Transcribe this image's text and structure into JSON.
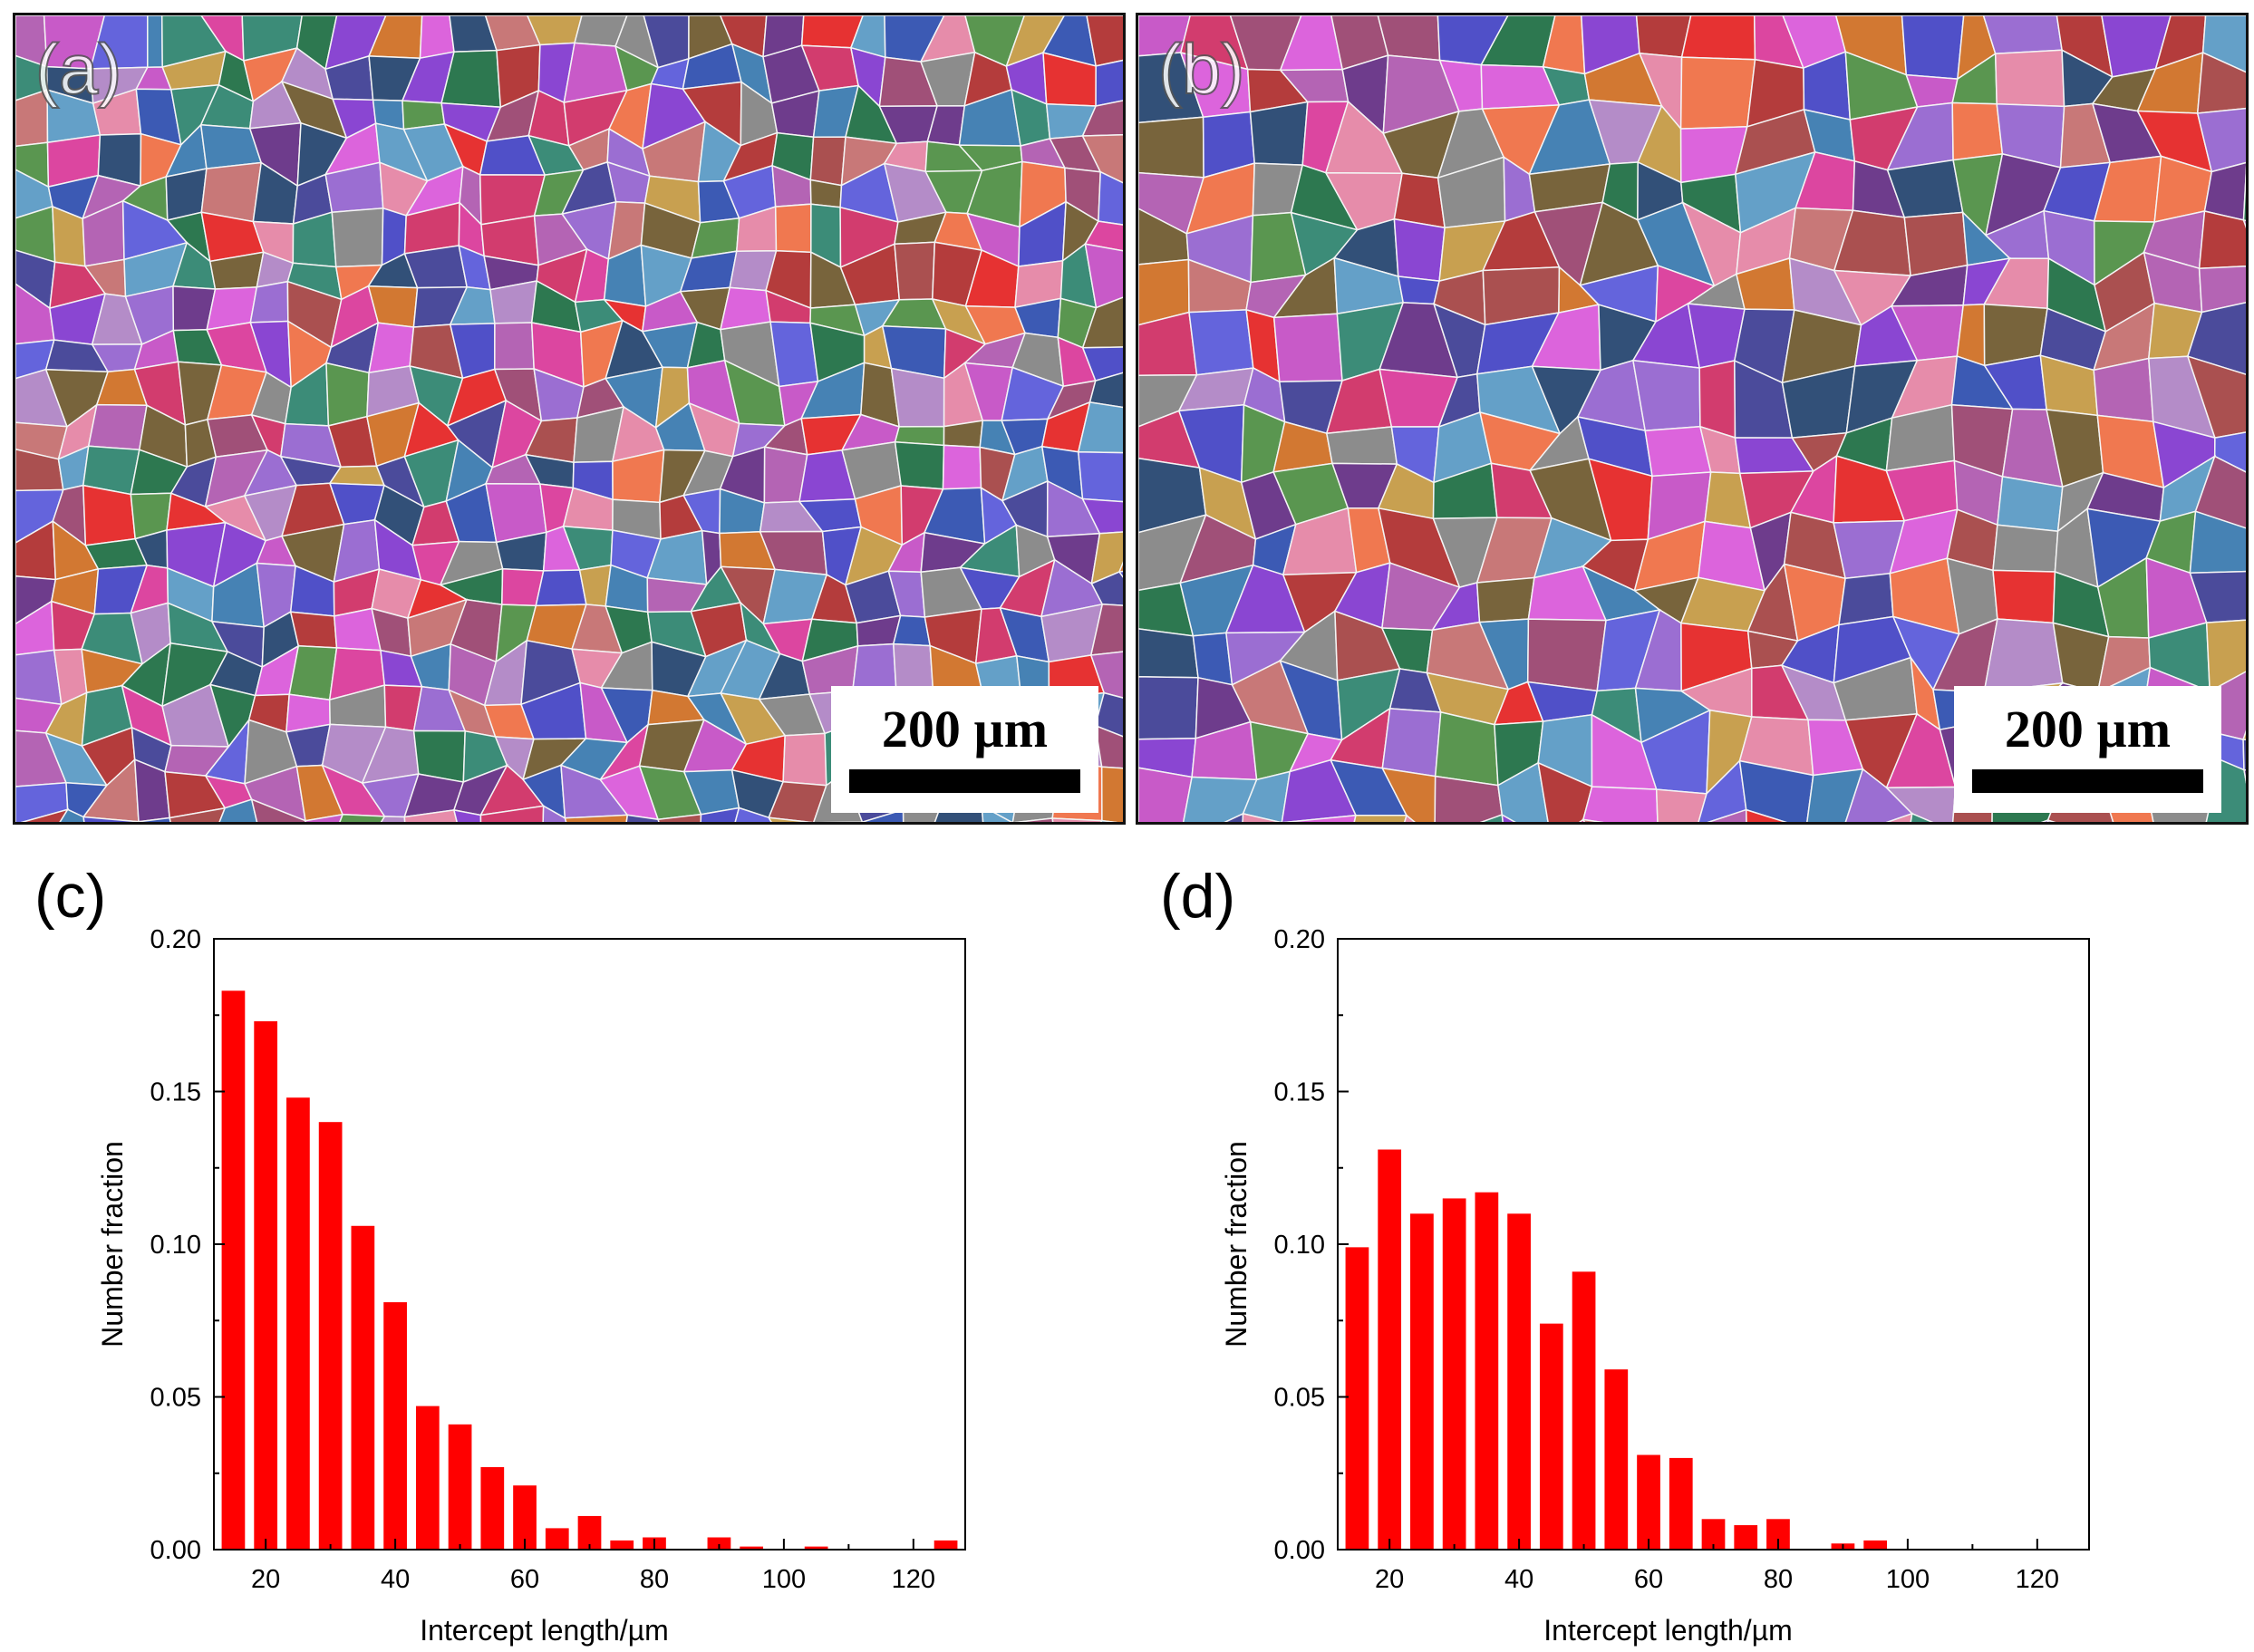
{
  "panels": {
    "a": {
      "label": "(a)",
      "scale_text": "200 µm"
    },
    "b": {
      "label": "(b)",
      "scale_text": "200 µm"
    }
  },
  "chart_data": [
    {
      "panel_label": "(c)",
      "type": "bar",
      "title": "",
      "xlabel": "Intercept length/µm",
      "ylabel": "Number fraction",
      "xlim": [
        12,
        128
      ],
      "ylim": [
        0,
        0.2
      ],
      "xticks": [
        20,
        40,
        60,
        80,
        100,
        120
      ],
      "yticks": [
        0.0,
        0.05,
        0.1,
        0.15,
        0.2
      ],
      "ytick_labels": [
        "0.00",
        "0.05",
        "0.10",
        "0.15",
        "0.20"
      ],
      "bar_color": "#ff0000",
      "x": [
        15,
        20,
        25,
        30,
        35,
        40,
        45,
        50,
        55,
        60,
        65,
        70,
        75,
        80,
        85,
        90,
        95,
        100,
        105,
        110,
        115,
        120,
        125
      ],
      "values": [
        0.183,
        0.173,
        0.148,
        0.14,
        0.106,
        0.081,
        0.047,
        0.041,
        0.027,
        0.021,
        0.007,
        0.011,
        0.003,
        0.004,
        0.0,
        0.004,
        0.001,
        0.0,
        0.001,
        0.0,
        0.0,
        0.0,
        0.003
      ]
    },
    {
      "panel_label": "(d)",
      "type": "bar",
      "title": "",
      "xlabel": "Intercept length/µm",
      "ylabel": "Number fraction",
      "xlim": [
        12,
        128
      ],
      "ylim": [
        0,
        0.2
      ],
      "xticks": [
        20,
        40,
        60,
        80,
        100,
        120
      ],
      "yticks": [
        0.0,
        0.05,
        0.1,
        0.15,
        0.2
      ],
      "ytick_labels": [
        "0.00",
        "0.05",
        "0.10",
        "0.15",
        "0.20"
      ],
      "bar_color": "#ff0000",
      "x": [
        15,
        20,
        25,
        30,
        35,
        40,
        45,
        50,
        55,
        60,
        65,
        70,
        75,
        80,
        85,
        90,
        95
      ],
      "values": [
        0.099,
        0.131,
        0.11,
        0.115,
        0.117,
        0.11,
        0.074,
        0.091,
        0.059,
        0.031,
        0.03,
        0.01,
        0.008,
        0.01,
        0.0,
        0.002,
        0.003
      ]
    }
  ]
}
